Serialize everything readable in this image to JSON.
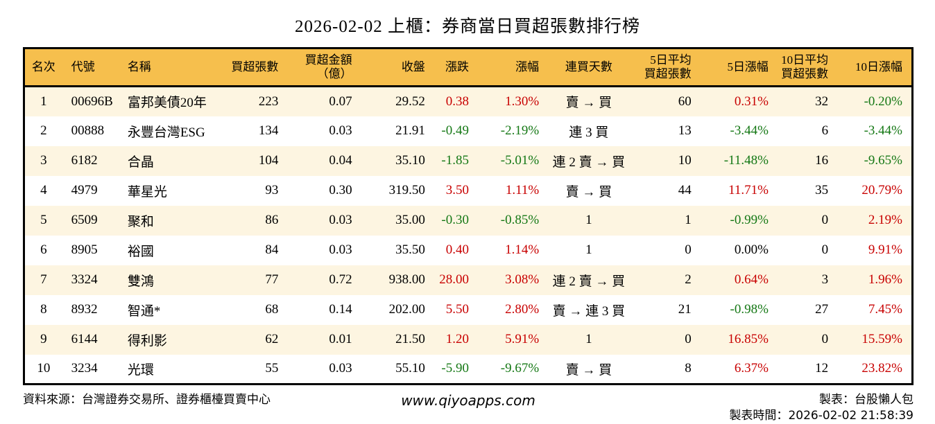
{
  "title": "2026-02-02 上櫃：券商當日買超張數排行榜",
  "colors": {
    "up_red": "#C80000",
    "down_green": "#157815",
    "neutral_black": "#000000",
    "header_bg": "#F6BF4D",
    "row_alt_bg": "#FDF5E1",
    "table_border": "#000000"
  },
  "table": {
    "columns": [
      {
        "key": "rank",
        "label": "名次",
        "signed": false
      },
      {
        "key": "code",
        "label": "代號",
        "signed": false
      },
      {
        "key": "name",
        "label": "名稱",
        "signed": false
      },
      {
        "key": "net_buy_lots",
        "label": "買超張數",
        "signed": false
      },
      {
        "key": "net_buy_amount",
        "label": "買超金額\n（億）",
        "signed": false
      },
      {
        "key": "close",
        "label": "收盤",
        "signed": false
      },
      {
        "key": "change",
        "label": "漲跌",
        "signed": true
      },
      {
        "key": "change_pct",
        "label": "漲幅",
        "signed": true
      },
      {
        "key": "buy_streak",
        "label": "連買天數",
        "signed": false
      },
      {
        "key": "avg5_net_buy",
        "label": "5日平均\n買超張數",
        "signed": false
      },
      {
        "key": "pct5",
        "label": "5日漲幅",
        "signed": true
      },
      {
        "key": "avg10_net_buy",
        "label": "10日平均\n買超張數",
        "signed": false
      },
      {
        "key": "pct10",
        "label": "10日漲幅",
        "signed": true
      }
    ],
    "rows": [
      [
        "1",
        "00696B",
        "富邦美債20年",
        "223",
        "0.07",
        "29.52",
        "0.38",
        "1.30%",
        "賣 → 買",
        "60",
        "0.31%",
        "32",
        "-0.20%"
      ],
      [
        "2",
        "00888",
        "永豐台灣ESG",
        "134",
        "0.03",
        "21.91",
        "-0.49",
        "-2.19%",
        "連 3 買",
        "13",
        "-3.44%",
        "6",
        "-3.44%"
      ],
      [
        "3",
        "6182",
        "合晶",
        "104",
        "0.04",
        "35.10",
        "-1.85",
        "-5.01%",
        "連 2 賣 → 買",
        "10",
        "-11.48%",
        "16",
        "-9.65%"
      ],
      [
        "4",
        "4979",
        "華星光",
        "93",
        "0.30",
        "319.50",
        "3.50",
        "1.11%",
        "賣 → 買",
        "44",
        "11.71%",
        "35",
        "20.79%"
      ],
      [
        "5",
        "6509",
        "聚和",
        "86",
        "0.03",
        "35.00",
        "-0.30",
        "-0.85%",
        "1",
        "1",
        "-0.99%",
        "0",
        "2.19%"
      ],
      [
        "6",
        "8905",
        "裕國",
        "84",
        "0.03",
        "35.50",
        "0.40",
        "1.14%",
        "1",
        "0",
        "0.00%",
        "0",
        "9.91%"
      ],
      [
        "7",
        "3324",
        "雙鴻",
        "77",
        "0.72",
        "938.00",
        "28.00",
        "3.08%",
        "連 2 賣 → 買",
        "2",
        "0.64%",
        "3",
        "1.96%"
      ],
      [
        "8",
        "8932",
        "智通*",
        "68",
        "0.14",
        "202.00",
        "5.50",
        "2.80%",
        "賣 → 連 3 買",
        "21",
        "-0.98%",
        "27",
        "7.45%"
      ],
      [
        "9",
        "6144",
        "得利影",
        "62",
        "0.01",
        "21.50",
        "1.20",
        "5.91%",
        "1",
        "0",
        "16.85%",
        "0",
        "15.59%"
      ],
      [
        "10",
        "3234",
        "光環",
        "55",
        "0.03",
        "55.10",
        "-5.90",
        "-9.67%",
        "賣 → 買",
        "8",
        "6.37%",
        "12",
        "23.82%"
      ]
    ]
  },
  "footer": {
    "source": "資料來源：台灣證券交易所、證券櫃檯買賣中心",
    "site": "www.qiyoapps.com",
    "made_by": "製表：台股懶人包",
    "made_time_label": "製表時間：",
    "made_time": "2026-02-02 21:58:39"
  }
}
